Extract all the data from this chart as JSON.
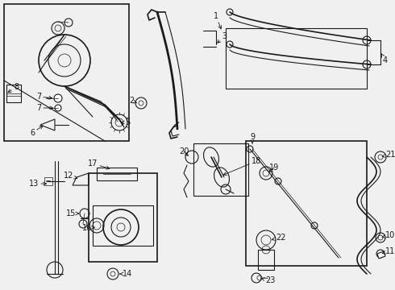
{
  "bg_color": "#f0f0f0",
  "line_color": "#1a1a1a",
  "label_color": "#000000",
  "fig_width": 4.9,
  "fig_height": 3.6,
  "dpi": 100
}
